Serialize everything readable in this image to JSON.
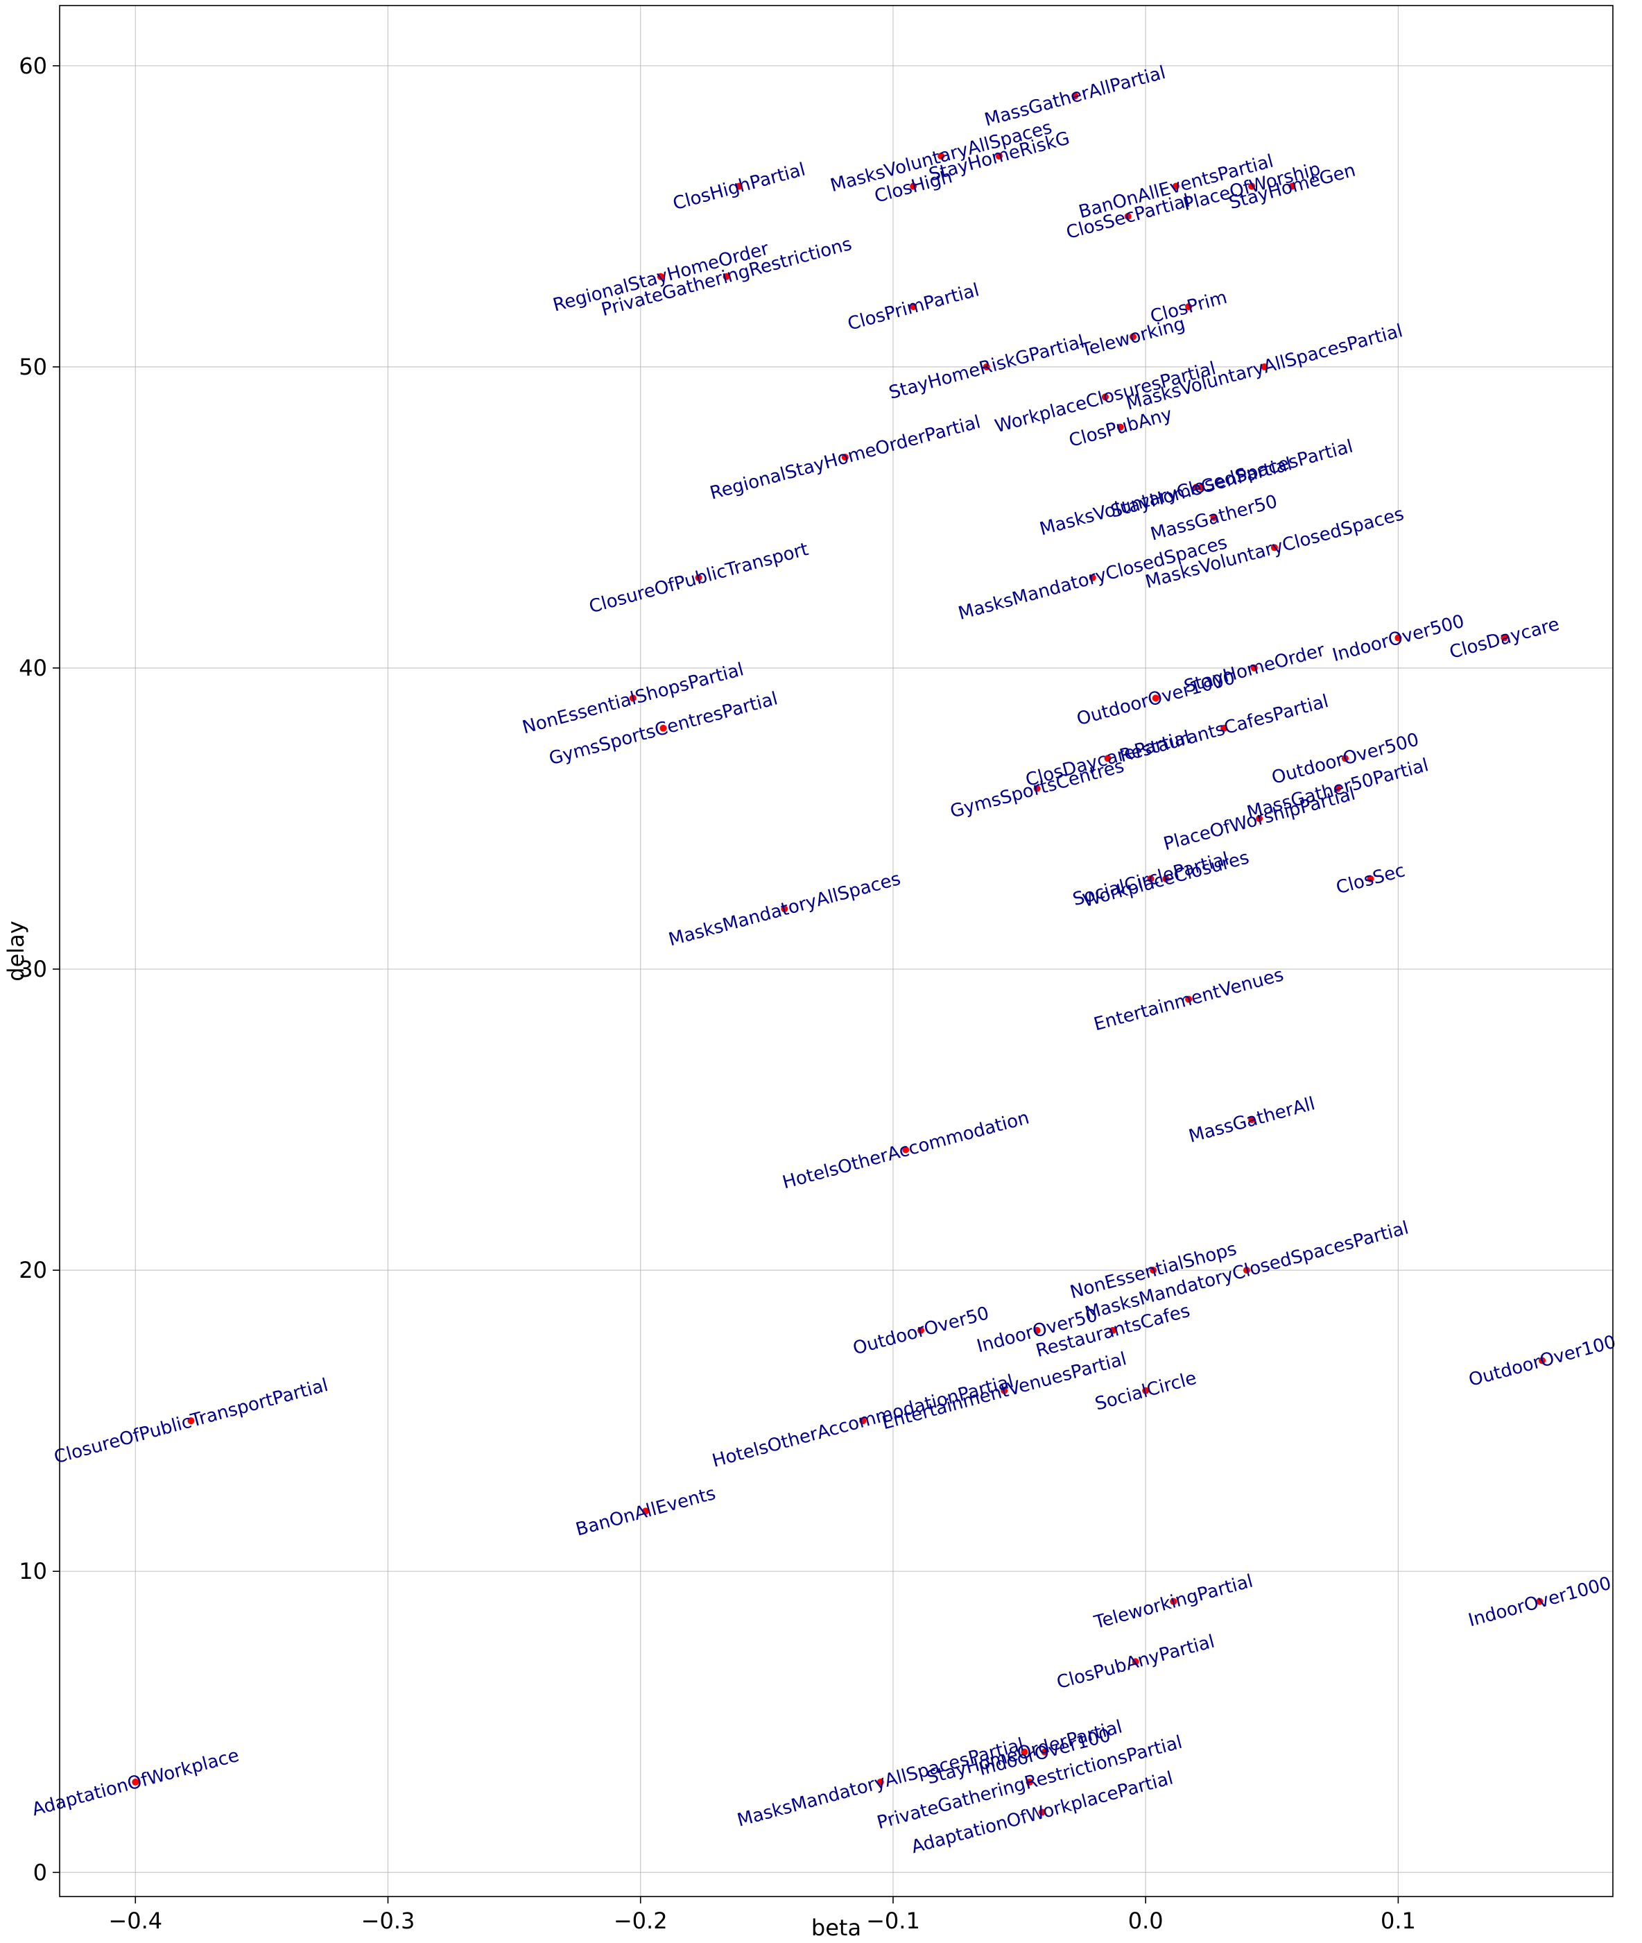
{
  "chart_data": {
    "type": "scatter",
    "title": "",
    "xlabel": "beta",
    "ylabel": "delay",
    "xlim": [
      -0.43,
      0.185
    ],
    "ylim": [
      -0.8,
      62
    ],
    "grid": true,
    "x_ticks": [
      -0.4,
      -0.3,
      -0.2,
      -0.1,
      0.0,
      0.1
    ],
    "x_tick_labels": [
      "−0.4",
      "−0.3",
      "−0.2",
      "−0.1",
      "0.0",
      "0.1"
    ],
    "y_ticks": [
      0,
      10,
      20,
      30,
      40,
      50,
      60
    ],
    "y_tick_labels": [
      "0",
      "10",
      "20",
      "30",
      "40",
      "50",
      "60"
    ],
    "marker_color": "#ff0000",
    "label_color": "#00008b",
    "points": [
      {
        "label": "MassGatherAllPartial",
        "x": -0.028,
        "y": 59
      },
      {
        "label": "MasksVoluntaryAllSpaces",
        "x": -0.081,
        "y": 57
      },
      {
        "label": "StayHomeRiskG",
        "x": -0.058,
        "y": 57
      },
      {
        "label": "ClosHighPartial",
        "x": -0.161,
        "y": 56
      },
      {
        "label": "ClosHigh",
        "x": -0.092,
        "y": 56
      },
      {
        "label": "BanOnAllEventsPartial",
        "x": 0.012,
        "y": 56
      },
      {
        "label": "StayHomeGen",
        "x": 0.058,
        "y": 56
      },
      {
        "label": "PlaceOfWorship",
        "x": 0.042,
        "y": 56
      },
      {
        "label": "ClosSecPartial",
        "x": -0.007,
        "y": 55
      },
      {
        "label": "RegionalStayHomeOrder",
        "x": -0.192,
        "y": 53
      },
      {
        "label": "PrivateGatheringRestrictions",
        "x": -0.166,
        "y": 53
      },
      {
        "label": "ClosPrimPartial",
        "x": -0.092,
        "y": 52
      },
      {
        "label": "ClosPrim",
        "x": 0.017,
        "y": 52
      },
      {
        "label": "Teleworking",
        "x": -0.005,
        "y": 51
      },
      {
        "label": "StayHomeRiskGPartial",
        "x": -0.063,
        "y": 50
      },
      {
        "label": "MasksVoluntaryAllSpacesPartial",
        "x": 0.047,
        "y": 50
      },
      {
        "label": "WorkplaceClosuresPartial",
        "x": -0.016,
        "y": 49
      },
      {
        "label": "ClosPubAny",
        "x": -0.01,
        "y": 48
      },
      {
        "label": "RegionalStayHomeOrderPartial",
        "x": -0.119,
        "y": 47
      },
      {
        "label": "MasksVoluntaryClosedSpacesPartial",
        "x": 0.02,
        "y": 46
      },
      {
        "label": "StayHomeGenPartial",
        "x": 0.022,
        "y": 46
      },
      {
        "label": "MassGather50",
        "x": 0.027,
        "y": 45
      },
      {
        "label": "MasksVoluntaryClosedSpaces",
        "x": 0.051,
        "y": 44
      },
      {
        "label": "MasksMandatoryClosedSpaces",
        "x": -0.021,
        "y": 43
      },
      {
        "label": "ClosureOfPublicTransport",
        "x": -0.177,
        "y": 43
      },
      {
        "label": "IndoorOver500",
        "x": 0.1,
        "y": 41
      },
      {
        "label": "ClosDaycare",
        "x": 0.142,
        "y": 41
      },
      {
        "label": "StayHomeOrder",
        "x": 0.043,
        "y": 40
      },
      {
        "label": "OutdoorOver1000",
        "x": 0.004,
        "y": 39
      },
      {
        "label": "NonEssentialShopsPartial",
        "x": -0.203,
        "y": 39
      },
      {
        "label": "GymsSportsCentresPartial",
        "x": -0.191,
        "y": 38
      },
      {
        "label": "RestaurantsCafesPartial",
        "x": 0.031,
        "y": 38
      },
      {
        "label": "ClosDaycarePartial",
        "x": -0.015,
        "y": 37
      },
      {
        "label": "OutdoorOver500",
        "x": 0.079,
        "y": 37
      },
      {
        "label": "GymsSportsCentres",
        "x": -0.043,
        "y": 36
      },
      {
        "label": "MassGather50Partial",
        "x": 0.076,
        "y": 36
      },
      {
        "label": "PlaceOfWorshipPartial",
        "x": 0.045,
        "y": 35
      },
      {
        "label": "SocialCirclePartial",
        "x": 0.002,
        "y": 33
      },
      {
        "label": "WorkplaceClosures",
        "x": 0.008,
        "y": 33
      },
      {
        "label": "ClosSec",
        "x": 0.089,
        "y": 33
      },
      {
        "label": "MasksMandatoryAllSpaces",
        "x": -0.143,
        "y": 32
      },
      {
        "label": "EntertainmentVenues",
        "x": 0.017,
        "y": 29
      },
      {
        "label": "MassGatherAll",
        "x": 0.042,
        "y": 25
      },
      {
        "label": "HotelsOtherAccommodation",
        "x": -0.095,
        "y": 24
      },
      {
        "label": "NonEssentialShops",
        "x": 0.003,
        "y": 20
      },
      {
        "label": "MasksMandatoryClosedSpacesPartial",
        "x": 0.04,
        "y": 20
      },
      {
        "label": "OutdoorOver50",
        "x": -0.089,
        "y": 18
      },
      {
        "label": "IndoorOver50",
        "x": -0.043,
        "y": 18
      },
      {
        "label": "RestaurantsCafes",
        "x": -0.013,
        "y": 18
      },
      {
        "label": "HotelsOtherAccommodationPartial",
        "x": -0.112,
        "y": 15
      },
      {
        "label": "EntertainmentVenuesPartial",
        "x": -0.056,
        "y": 16
      },
      {
        "label": "SocialCircle",
        "x": 0.0,
        "y": 16
      },
      {
        "label": "OutdoorOver100",
        "x": 0.157,
        "y": 17
      },
      {
        "label": "ClosureOfPublicTransportPartial",
        "x": -0.378,
        "y": 15
      },
      {
        "label": "BanOnAllEvents",
        "x": -0.198,
        "y": 12
      },
      {
        "label": "TeleworkingPartial",
        "x": 0.011,
        "y": 9
      },
      {
        "label": "IndoorOver1000",
        "x": 0.156,
        "y": 9
      },
      {
        "label": "ClosPubAnyPartial",
        "x": -0.004,
        "y": 7
      },
      {
        "label": "StayHomeOrderPartial",
        "x": -0.048,
        "y": 4
      },
      {
        "label": "IndoorOver100",
        "x": -0.04,
        "y": 4
      },
      {
        "label": "MasksMandatoryAllSpacesPartial",
        "x": -0.105,
        "y": 3
      },
      {
        "label": "PrivateGatheringRestrictionsPartial",
        "x": -0.046,
        "y": 3
      },
      {
        "label": "AdaptationOfWorkplacePartial",
        "x": -0.041,
        "y": 2
      },
      {
        "label": "AdaptationOfWorkplace",
        "x": -0.4,
        "y": 3
      }
    ]
  }
}
